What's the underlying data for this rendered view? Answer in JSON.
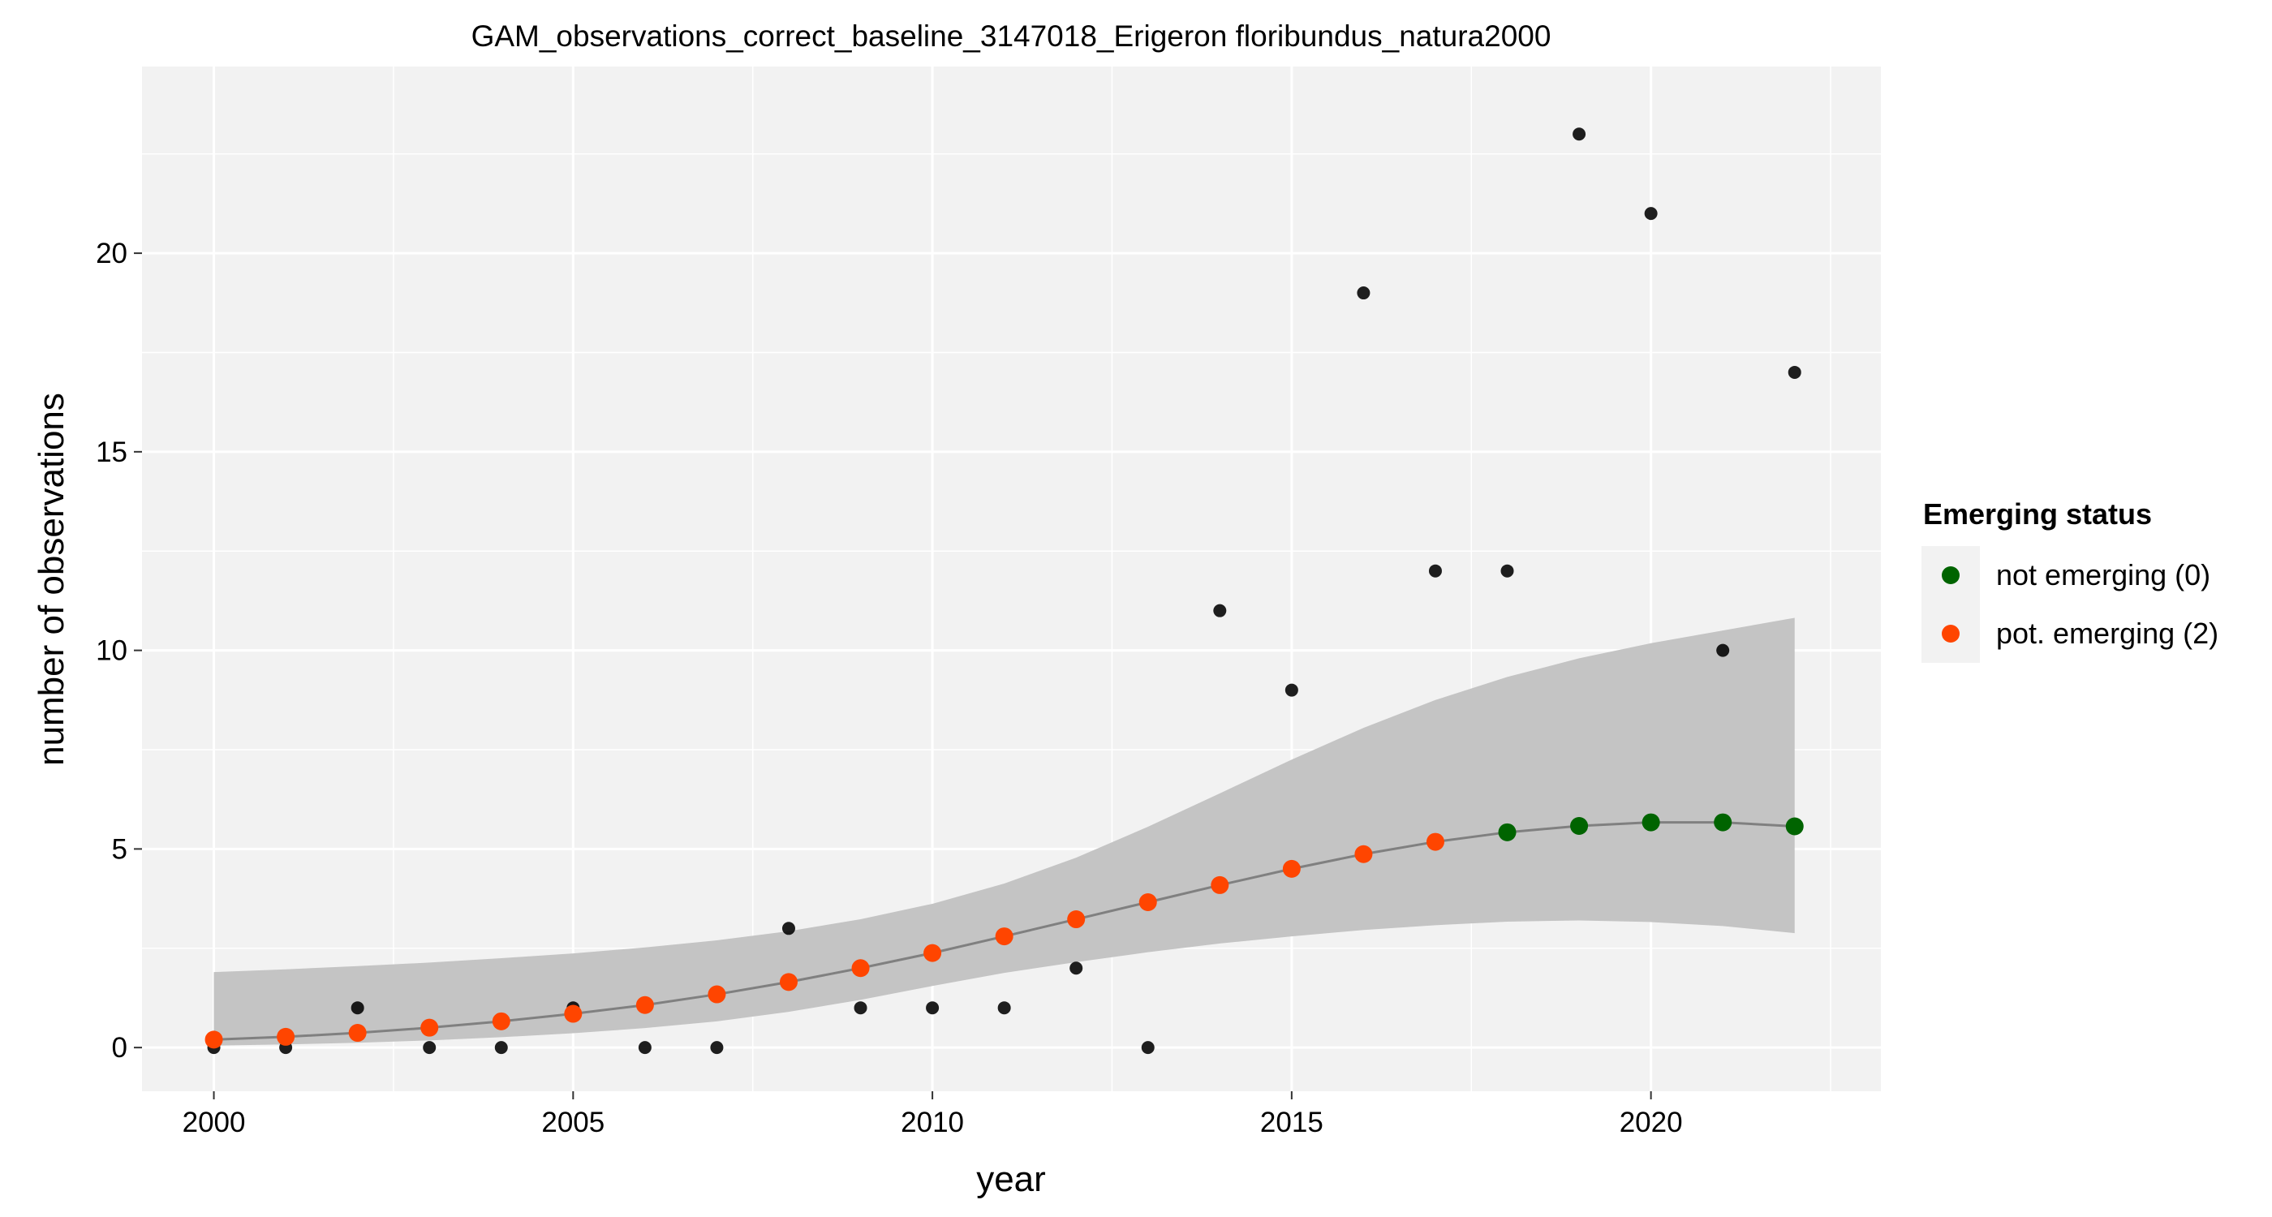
{
  "chart_data": {
    "type": "scatter",
    "title": "GAM_observations_correct_baseline_3147018_Erigeron floribundus_natura2000",
    "xlabel": "year",
    "ylabel": "number of observations",
    "xlim": [
      1999,
      2023.2
    ],
    "ylim": [
      -1.1,
      24.7
    ],
    "x_ticks": [
      2000,
      2005,
      2010,
      2015,
      2020
    ],
    "y_ticks": [
      0,
      5,
      10,
      15,
      20
    ],
    "grid": true,
    "legend": {
      "title": "Emerging status",
      "position": "right",
      "entries": [
        {
          "label": "not emerging (0)",
          "color": "#006400"
        },
        {
          "label": "pot. emerging (2)",
          "color": "#ff4500"
        }
      ]
    },
    "observations": {
      "color": "#000000",
      "points": [
        {
          "x": 2000,
          "y": 0
        },
        {
          "x": 2001,
          "y": 0
        },
        {
          "x": 2002,
          "y": 1
        },
        {
          "x": 2003,
          "y": 0
        },
        {
          "x": 2004,
          "y": 0
        },
        {
          "x": 2005,
          "y": 1
        },
        {
          "x": 2006,
          "y": 0
        },
        {
          "x": 2007,
          "y": 0
        },
        {
          "x": 2008,
          "y": 3
        },
        {
          "x": 2009,
          "y": 1
        },
        {
          "x": 2010,
          "y": 1
        },
        {
          "x": 2011,
          "y": 1
        },
        {
          "x": 2012,
          "y": 2
        },
        {
          "x": 2013,
          "y": 0
        },
        {
          "x": 2014,
          "y": 11
        },
        {
          "x": 2015,
          "y": 9
        },
        {
          "x": 2016,
          "y": 19
        },
        {
          "x": 2017,
          "y": 12
        },
        {
          "x": 2018,
          "y": 12
        },
        {
          "x": 2019,
          "y": 23
        },
        {
          "x": 2020,
          "y": 21
        },
        {
          "x": 2021,
          "y": 10
        },
        {
          "x": 2022,
          "y": 17
        }
      ]
    },
    "fit": {
      "line_color": "#808080",
      "band_color": "#c4c4c4",
      "points": [
        {
          "x": 2000,
          "y": 0.2,
          "lower": 0.05,
          "upper": 1.9,
          "status": "pot. emerging (2)"
        },
        {
          "x": 2001,
          "y": 0.27,
          "lower": 0.08,
          "upper": 1.97,
          "status": "pot. emerging (2)"
        },
        {
          "x": 2002,
          "y": 0.37,
          "lower": 0.12,
          "upper": 2.05,
          "status": "pot. emerging (2)"
        },
        {
          "x": 2003,
          "y": 0.5,
          "lower": 0.18,
          "upper": 2.14,
          "status": "pot. emerging (2)"
        },
        {
          "x": 2004,
          "y": 0.66,
          "lower": 0.26,
          "upper": 2.25,
          "status": "pot. emerging (2)"
        },
        {
          "x": 2005,
          "y": 0.85,
          "lower": 0.36,
          "upper": 2.37,
          "status": "pot. emerging (2)"
        },
        {
          "x": 2006,
          "y": 1.07,
          "lower": 0.49,
          "upper": 2.52,
          "status": "pot. emerging (2)"
        },
        {
          "x": 2007,
          "y": 1.34,
          "lower": 0.66,
          "upper": 2.7,
          "status": "pot. emerging (2)"
        },
        {
          "x": 2008,
          "y": 1.65,
          "lower": 0.9,
          "upper": 2.93,
          "status": "pot. emerging (2)"
        },
        {
          "x": 2009,
          "y": 2.0,
          "lower": 1.2,
          "upper": 3.23,
          "status": "pot. emerging (2)"
        },
        {
          "x": 2010,
          "y": 2.38,
          "lower": 1.55,
          "upper": 3.62,
          "status": "pot. emerging (2)"
        },
        {
          "x": 2011,
          "y": 2.8,
          "lower": 1.88,
          "upper": 4.13,
          "status": "pot. emerging (2)"
        },
        {
          "x": 2012,
          "y": 3.23,
          "lower": 2.15,
          "upper": 4.78,
          "status": "pot. emerging (2)"
        },
        {
          "x": 2013,
          "y": 3.66,
          "lower": 2.4,
          "upper": 5.56,
          "status": "pot. emerging (2)"
        },
        {
          "x": 2014,
          "y": 4.09,
          "lower": 2.62,
          "upper": 6.4,
          "status": "pot. emerging (2)"
        },
        {
          "x": 2015,
          "y": 4.5,
          "lower": 2.8,
          "upper": 7.25,
          "status": "pot. emerging (2)"
        },
        {
          "x": 2016,
          "y": 4.87,
          "lower": 2.96,
          "upper": 8.05,
          "status": "pot. emerging (2)"
        },
        {
          "x": 2017,
          "y": 5.18,
          "lower": 3.08,
          "upper": 8.75,
          "status": "pot. emerging (2)"
        },
        {
          "x": 2018,
          "y": 5.42,
          "lower": 3.17,
          "upper": 9.33,
          "status": "not emerging (0)"
        },
        {
          "x": 2019,
          "y": 5.58,
          "lower": 3.2,
          "upper": 9.8,
          "status": "not emerging (0)"
        },
        {
          "x": 2020,
          "y": 5.67,
          "lower": 3.16,
          "upper": 10.18,
          "status": "not emerging (0)"
        },
        {
          "x": 2021,
          "y": 5.67,
          "lower": 3.06,
          "upper": 10.5,
          "status": "not emerging (0)"
        },
        {
          "x": 2022,
          "y": 5.57,
          "lower": 2.88,
          "upper": 10.82,
          "status": "not emerging (0)"
        }
      ]
    }
  }
}
